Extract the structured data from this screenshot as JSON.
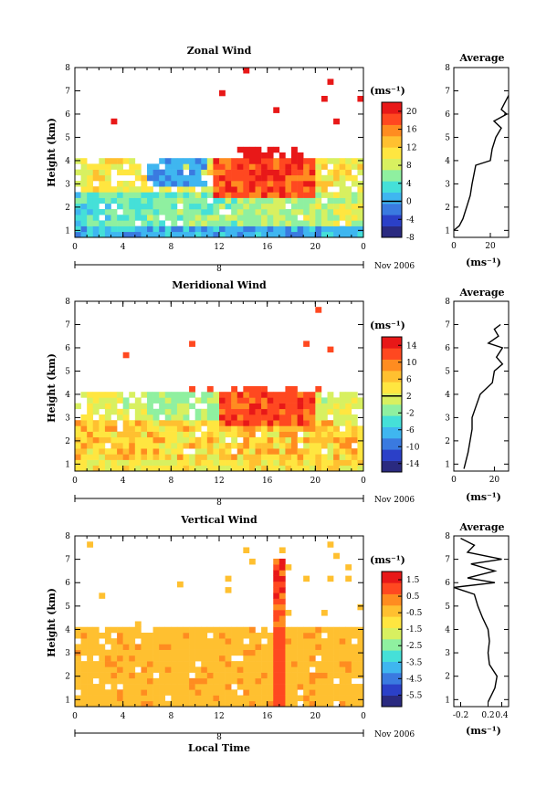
{
  "colors": {
    "scale": [
      "#2a2a80",
      "#2b40c8",
      "#3a7ae0",
      "#3fb6f0",
      "#45e0d8",
      "#8ff0a0",
      "#d8f060",
      "#ffe640",
      "#ffc030",
      "#ff8c20",
      "#ff4820",
      "#e81818"
    ],
    "missing": "#ffffff"
  },
  "colorbar_unit": "(ms⁻¹)",
  "average_unit": "(ms⁻¹)",
  "chart_data": [
    {
      "type": "heatmap",
      "title": "Zonal Wind",
      "ylabel": "Height (km)",
      "xlabel": "",
      "x_ticks": [
        "0",
        "4",
        "8",
        "12",
        "16",
        "20",
        "0"
      ],
      "y_ticks": [
        "1",
        "2",
        "3",
        "4",
        "5",
        "6",
        "7",
        "8"
      ],
      "xlim": [
        0,
        24
      ],
      "ylim": [
        0.7,
        8
      ],
      "date_marker": "8",
      "date_suffix": "Nov 2006",
      "colorbar": {
        "vmin": -8,
        "vmax": 22,
        "ticks": [
          "-8",
          "-4",
          "0",
          "4",
          "8",
          "12",
          "16",
          "20"
        ],
        "contour_at": 0
      },
      "average": {
        "title": "Average",
        "xlim": [
          0,
          30
        ],
        "x_ticks": [
          "0",
          "20"
        ],
        "y_ticks": [
          "1",
          "2",
          "3",
          "4",
          "5",
          "6",
          "7",
          "8"
        ],
        "profile": [
          [
            1,
            0
          ],
          [
            1.2,
            3
          ],
          [
            1.5,
            5
          ],
          [
            2,
            7
          ],
          [
            2.5,
            9
          ],
          [
            3,
            10
          ],
          [
            3.4,
            11
          ],
          [
            3.8,
            12
          ],
          [
            4.0,
            20
          ],
          [
            4.5,
            21
          ],
          [
            5,
            23
          ],
          [
            5.4,
            26
          ],
          [
            5.7,
            22
          ],
          [
            6,
            29
          ],
          [
            6.2,
            26
          ],
          [
            6.5,
            28
          ],
          [
            6.8,
            30
          ]
        ]
      }
    },
    {
      "type": "heatmap",
      "title": "Meridional Wind",
      "ylabel": "Height (km)",
      "xlabel": "",
      "x_ticks": [
        "0",
        "4",
        "8",
        "12",
        "16",
        "20",
        "0"
      ],
      "y_ticks": [
        "1",
        "2",
        "3",
        "4",
        "5",
        "6",
        "7",
        "8"
      ],
      "xlim": [
        0,
        24
      ],
      "ylim": [
        0.7,
        8
      ],
      "date_marker": "8",
      "date_suffix": "Nov 2006",
      "colorbar": {
        "vmin": -16,
        "vmax": 16,
        "ticks": [
          "-14",
          "-10",
          "-6",
          "-2",
          "2",
          "6",
          "10",
          "14"
        ],
        "contour_at": 2
      },
      "average": {
        "title": "Average",
        "xlim": [
          0,
          27
        ],
        "x_ticks": [
          "0",
          "20"
        ],
        "y_ticks": [
          "1",
          "2",
          "3",
          "4",
          "5",
          "6",
          "7",
          "8"
        ],
        "profile": [
          [
            0.8,
            5
          ],
          [
            1.5,
            7
          ],
          [
            2,
            8
          ],
          [
            2.5,
            9
          ],
          [
            3,
            9
          ],
          [
            3.5,
            11
          ],
          [
            4,
            13
          ],
          [
            4.5,
            19
          ],
          [
            5,
            20
          ],
          [
            5.3,
            24
          ],
          [
            5.6,
            21
          ],
          [
            6,
            24
          ],
          [
            6.2,
            17
          ],
          [
            6.5,
            22
          ],
          [
            6.8,
            20
          ],
          [
            7,
            23
          ]
        ]
      }
    },
    {
      "type": "heatmap",
      "title": "Vertical Wind",
      "ylabel": "Height (km)",
      "xlabel": "Local Time",
      "x_ticks": [
        "0",
        "4",
        "8",
        "12",
        "16",
        "20",
        "0"
      ],
      "y_ticks": [
        "1",
        "2",
        "3",
        "4",
        "5",
        "6",
        "7",
        "8"
      ],
      "xlim": [
        0,
        24
      ],
      "ylim": [
        0.7,
        8
      ],
      "date_marker": "8",
      "date_suffix": "Nov 2006",
      "colorbar": {
        "vmin": -6.2,
        "vmax": 2.0,
        "ticks": [
          "-5.5",
          "-4.5",
          "-3.5",
          "-2.5",
          "-1.5",
          "-0.5",
          "0.5",
          "1.5"
        ],
        "contour_at": null
      },
      "average": {
        "title": "Average",
        "xlim": [
          -0.3,
          0.5
        ],
        "x_ticks": [
          "-0.2",
          "0.2",
          "0.4"
        ],
        "y_ticks": [
          "1",
          "2",
          "3",
          "4",
          "5",
          "6",
          "7",
          "8"
        ],
        "profile": [
          [
            0.9,
            0.2
          ],
          [
            1.2,
            0.25
          ],
          [
            1.5,
            0.3
          ],
          [
            2,
            0.33
          ],
          [
            2.5,
            0.22
          ],
          [
            3,
            0.2
          ],
          [
            3.5,
            0.22
          ],
          [
            4,
            0.2
          ],
          [
            4.5,
            0.12
          ],
          [
            5,
            0.05
          ],
          [
            5.5,
            0.0
          ],
          [
            5.8,
            -0.3
          ],
          [
            6,
            0.3
          ],
          [
            6.2,
            -0.1
          ],
          [
            6.5,
            0.3
          ],
          [
            6.8,
            -0.05
          ],
          [
            7,
            0.4
          ],
          [
            7.3,
            -0.1
          ],
          [
            7.6,
            0.0
          ],
          [
            7.9,
            -0.2
          ]
        ]
      }
    }
  ]
}
